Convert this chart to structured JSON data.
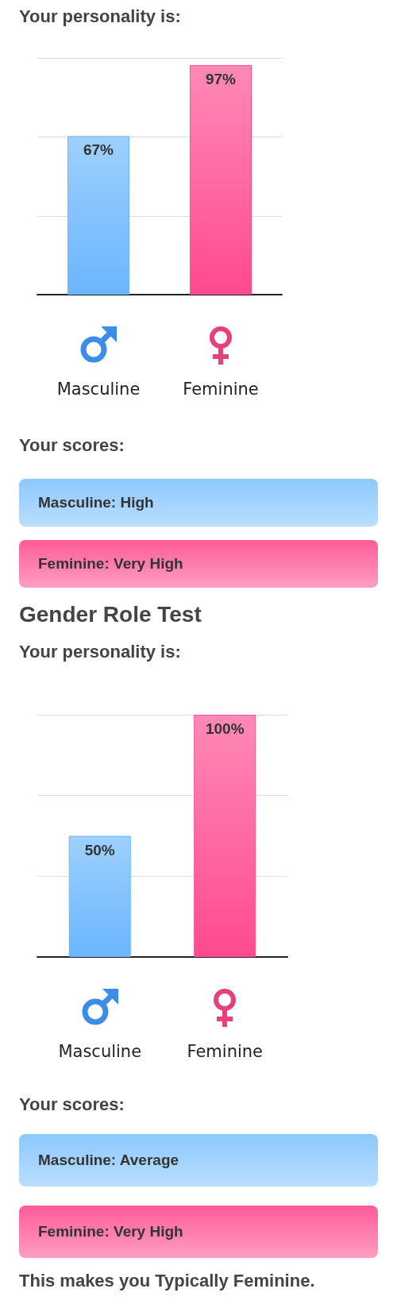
{
  "chart_data": [
    {
      "type": "bar",
      "title": "Your personality is:",
      "categories": [
        "Masculine",
        "Feminine"
      ],
      "values": [
        67,
        97
      ],
      "colors": [
        "#6ab6ff",
        "#ff4a90"
      ],
      "value_labels": [
        "67%",
        "97%"
      ],
      "ylim": [
        0,
        100
      ],
      "yticks": [
        {
          "value": 0,
          "label": null
        },
        {
          "value": 33.3,
          "label": null
        },
        {
          "value": 66.7,
          "label": null
        },
        {
          "value": 100,
          "label": null
        }
      ],
      "grid": "y",
      "tick_labels": "x"
    },
    {
      "type": "other",
      "title": "Your scores:",
      "annotations": [
        "Masculine: High",
        "Feminine: Very High"
      ],
      "colors": [
        "#8cc8ff",
        "#ff5c9a"
      ]
    },
    {
      "type": "bar",
      "title": "Gender Role Test",
      "subtitle": "Your personality is:",
      "categories": [
        "Masculine",
        "Feminine"
      ],
      "values": [
        50,
        100
      ],
      "colors": [
        "#6ab6ff",
        "#ff4a90"
      ],
      "value_labels": [
        "50%",
        "100%"
      ],
      "ylim": [
        0,
        100
      ],
      "yticks": [
        {
          "value": 0,
          "label": null
        },
        {
          "value": 33.3,
          "label": null
        },
        {
          "value": 66.7,
          "label": null
        },
        {
          "value": 100,
          "label": null
        }
      ],
      "grid": "y",
      "tick_labels": "x"
    },
    {
      "type": "other",
      "title": "Your scores:",
      "annotations": [
        "Masculine: Average",
        "Feminine: Very High",
        "This makes you Typically Feminine."
      ],
      "colors": [
        "#8cc8ff",
        "#ff5c9a"
      ]
    }
  ]
}
